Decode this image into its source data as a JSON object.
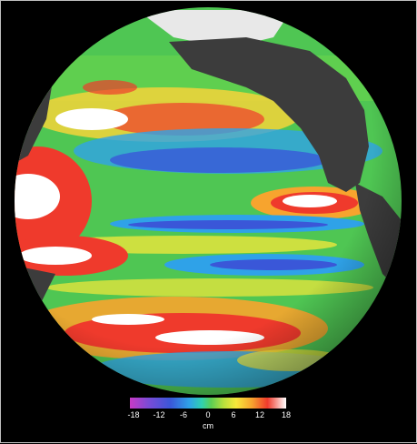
{
  "legend": {
    "ticks": [
      "-18",
      "-12",
      "-6",
      "0",
      "6",
      "12",
      "18"
    ],
    "unit": "cm"
  },
  "colors": {
    "ocean_low": "#7a4bd6",
    "ocean_mid": "#5ccf54",
    "ocean_high": "#ef3a2c",
    "peak": "#ffffff",
    "land": "#3c3c3c",
    "ice": "#e8e8e8"
  }
}
